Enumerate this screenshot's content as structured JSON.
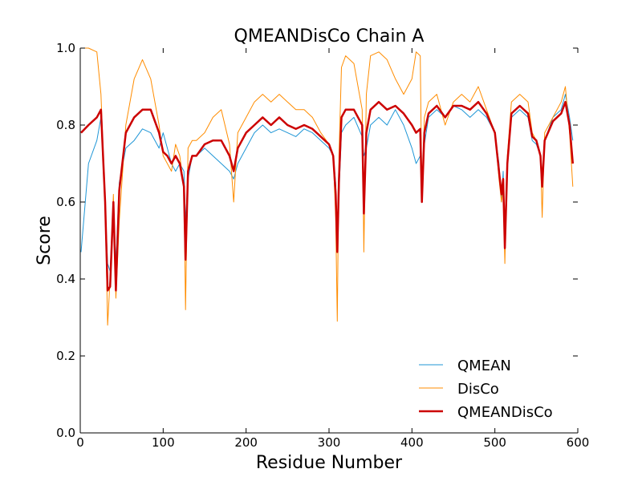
{
  "chart_data": {
    "type": "line",
    "title": "QMEANDisCo Chain A",
    "xlabel": "Residue Number",
    "ylabel": "Score",
    "xlim": [
      0,
      600
    ],
    "ylim": [
      0.0,
      1.0
    ],
    "xticks": [
      0,
      100,
      200,
      300,
      400,
      500,
      600
    ],
    "yticks": [
      0.0,
      0.2,
      0.4,
      0.6,
      0.8,
      1.0
    ],
    "xtick_labels": [
      "0",
      "100",
      "200",
      "300",
      "400",
      "500",
      "600"
    ],
    "ytick_labels": [
      "0.0",
      "0.2",
      "0.4",
      "0.6",
      "0.8",
      "1.0"
    ],
    "grid": false,
    "legend_position": "lower-right",
    "x": [
      1,
      10,
      20,
      25,
      30,
      33,
      36,
      40,
      43,
      47,
      55,
      65,
      75,
      85,
      95,
      100,
      105,
      110,
      115,
      120,
      125,
      127,
      130,
      135,
      140,
      150,
      160,
      170,
      180,
      185,
      190,
      200,
      210,
      220,
      230,
      240,
      250,
      260,
      270,
      280,
      290,
      300,
      305,
      308,
      310,
      312,
      315,
      320,
      330,
      340,
      342,
      345,
      350,
      360,
      370,
      380,
      390,
      400,
      405,
      410,
      412,
      415,
      420,
      430,
      440,
      450,
      460,
      470,
      480,
      490,
      500,
      505,
      508,
      510,
      512,
      515,
      520,
      530,
      540,
      545,
      550,
      555,
      557,
      560,
      570,
      580,
      585,
      590,
      594
    ],
    "series": [
      {
        "name": "QMEAN",
        "color": "#1f96d6",
        "linewidth": 1,
        "values": [
          0.47,
          0.7,
          0.76,
          0.82,
          0.6,
          0.44,
          0.42,
          0.6,
          0.44,
          0.65,
          0.74,
          0.76,
          0.79,
          0.78,
          0.74,
          0.78,
          0.74,
          0.7,
          0.68,
          0.7,
          0.68,
          0.55,
          0.66,
          0.72,
          0.72,
          0.74,
          0.72,
          0.7,
          0.68,
          0.66,
          0.7,
          0.74,
          0.78,
          0.8,
          0.78,
          0.79,
          0.78,
          0.77,
          0.79,
          0.78,
          0.76,
          0.74,
          0.72,
          0.65,
          0.5,
          0.62,
          0.78,
          0.8,
          0.82,
          0.77,
          0.72,
          0.74,
          0.8,
          0.82,
          0.8,
          0.84,
          0.8,
          0.74,
          0.7,
          0.72,
          0.64,
          0.75,
          0.82,
          0.84,
          0.82,
          0.85,
          0.84,
          0.82,
          0.84,
          0.82,
          0.78,
          0.7,
          0.6,
          0.68,
          0.52,
          0.7,
          0.82,
          0.84,
          0.82,
          0.76,
          0.75,
          0.72,
          0.66,
          0.76,
          0.82,
          0.84,
          0.88,
          0.82,
          0.76
        ]
      },
      {
        "name": "DisCo",
        "color": "#ff8c00",
        "linewidth": 1,
        "values": [
          1.0,
          1.0,
          0.99,
          0.88,
          0.6,
          0.28,
          0.4,
          0.62,
          0.35,
          0.55,
          0.8,
          0.92,
          0.97,
          0.92,
          0.8,
          0.72,
          0.7,
          0.68,
          0.75,
          0.72,
          0.64,
          0.32,
          0.74,
          0.76,
          0.76,
          0.78,
          0.82,
          0.84,
          0.75,
          0.6,
          0.78,
          0.82,
          0.86,
          0.88,
          0.86,
          0.88,
          0.86,
          0.84,
          0.84,
          0.82,
          0.78,
          0.75,
          0.72,
          0.56,
          0.29,
          0.72,
          0.95,
          0.98,
          0.96,
          0.84,
          0.47,
          0.88,
          0.98,
          0.99,
          0.97,
          0.92,
          0.88,
          0.92,
          0.99,
          0.98,
          0.6,
          0.82,
          0.86,
          0.88,
          0.8,
          0.86,
          0.88,
          0.86,
          0.9,
          0.84,
          0.78,
          0.66,
          0.6,
          0.64,
          0.44,
          0.72,
          0.86,
          0.88,
          0.86,
          0.78,
          0.76,
          0.72,
          0.56,
          0.78,
          0.82,
          0.86,
          0.9,
          0.78,
          0.64
        ]
      },
      {
        "name": "QMEANDisCo",
        "color": "#cc0000",
        "linewidth": 2.5,
        "values": [
          0.78,
          0.8,
          0.82,
          0.84,
          0.6,
          0.37,
          0.38,
          0.6,
          0.37,
          0.63,
          0.78,
          0.82,
          0.84,
          0.84,
          0.78,
          0.73,
          0.72,
          0.7,
          0.72,
          0.7,
          0.64,
          0.45,
          0.68,
          0.72,
          0.72,
          0.75,
          0.76,
          0.76,
          0.72,
          0.68,
          0.74,
          0.78,
          0.8,
          0.82,
          0.8,
          0.82,
          0.8,
          0.79,
          0.8,
          0.79,
          0.77,
          0.75,
          0.72,
          0.62,
          0.47,
          0.66,
          0.82,
          0.84,
          0.84,
          0.8,
          0.57,
          0.78,
          0.84,
          0.86,
          0.84,
          0.85,
          0.83,
          0.8,
          0.78,
          0.79,
          0.6,
          0.78,
          0.83,
          0.85,
          0.82,
          0.85,
          0.85,
          0.84,
          0.86,
          0.83,
          0.78,
          0.68,
          0.62,
          0.66,
          0.48,
          0.7,
          0.83,
          0.85,
          0.83,
          0.77,
          0.76,
          0.72,
          0.64,
          0.76,
          0.81,
          0.83,
          0.86,
          0.8,
          0.7
        ]
      }
    ]
  }
}
